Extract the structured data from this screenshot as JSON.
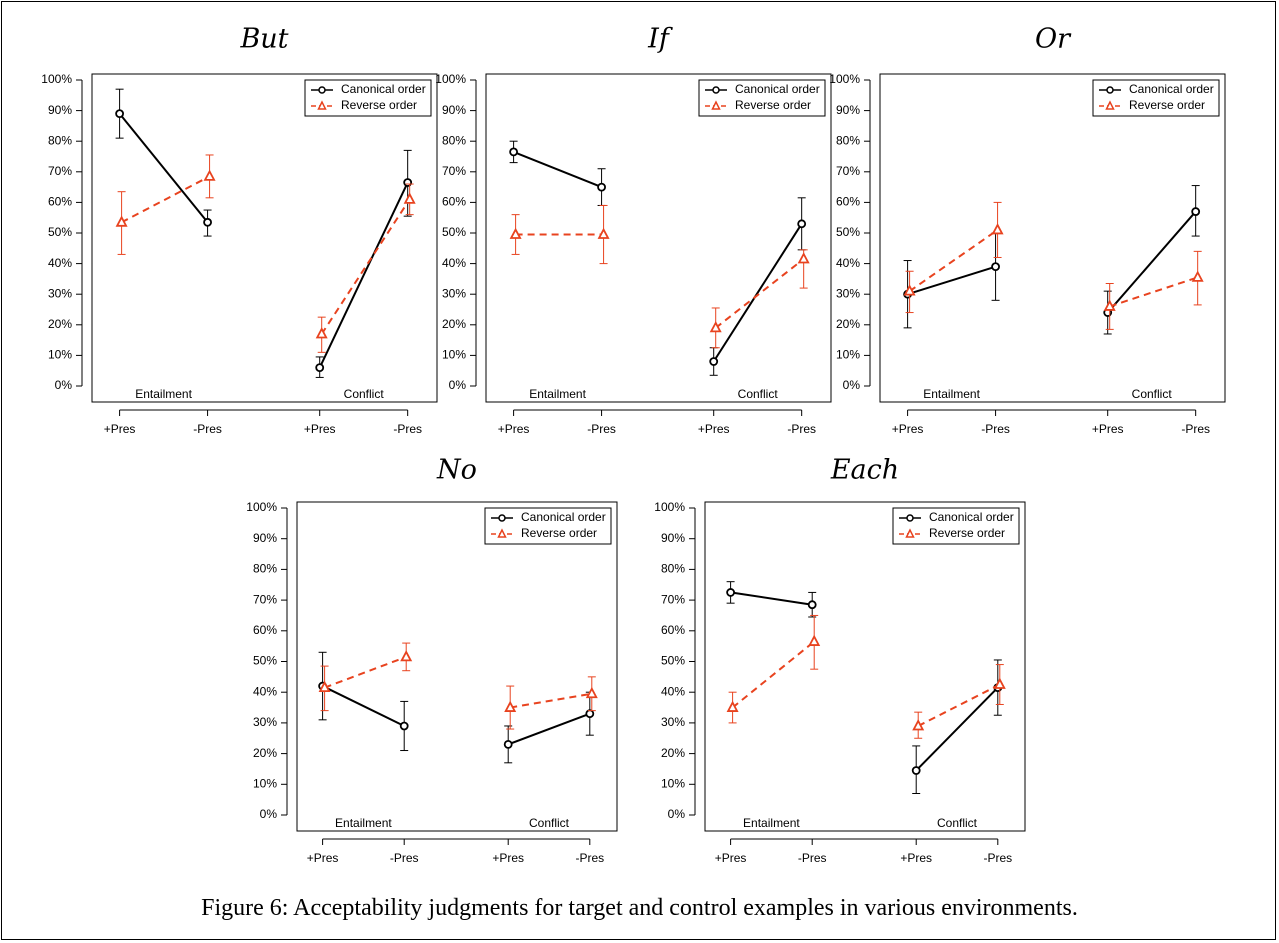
{
  "figure": {
    "caption": "Figure 6: Acceptability judgments for target and control examples in various environments."
  },
  "colors": {
    "canonical": "#000000",
    "reverse": "#e8431f"
  },
  "chart_data": [
    {
      "type": "line",
      "title": "But",
      "categories": [
        "+Pres",
        "-Pres",
        "+Pres",
        "-Pres"
      ],
      "groups": [
        "Entailment",
        "Conflict"
      ],
      "ylim": [
        0,
        100
      ],
      "yticks": [
        "0%",
        "10%",
        "20%",
        "30%",
        "40%",
        "50%",
        "60%",
        "70%",
        "80%",
        "90%",
        "100%"
      ],
      "legend_position": "top-right",
      "series": [
        {
          "name": "Canonical order",
          "values": [
            89,
            53.5,
            6,
            66.5
          ],
          "err_low": [
            81,
            49,
            2.8,
            55.5
          ],
          "err_high": [
            97,
            57.5,
            9.5,
            77
          ]
        },
        {
          "name": "Reverse order",
          "values": [
            53.5,
            68.5,
            17,
            61
          ],
          "err_low": [
            43,
            61.5,
            11,
            56
          ],
          "err_high": [
            63.5,
            75.5,
            22.5,
            66
          ]
        }
      ]
    },
    {
      "type": "line",
      "title": "If",
      "categories": [
        "+Pres",
        "-Pres",
        "+Pres",
        "-Pres"
      ],
      "groups": [
        "Entailment",
        "Conflict"
      ],
      "ylim": [
        0,
        100
      ],
      "yticks": [
        "0%",
        "10%",
        "20%",
        "30%",
        "40%",
        "50%",
        "60%",
        "70%",
        "80%",
        "90%",
        "100%"
      ],
      "legend_position": "top-right",
      "series": [
        {
          "name": "Canonical order",
          "values": [
            76.5,
            65,
            8,
            53
          ],
          "err_low": [
            73,
            59,
            3.5,
            44.5
          ],
          "err_high": [
            80,
            71,
            12.5,
            61.5
          ]
        },
        {
          "name": "Reverse order",
          "values": [
            49.5,
            49.5,
            19,
            41.5
          ],
          "err_low": [
            43,
            40,
            12.5,
            32
          ],
          "err_high": [
            56,
            59,
            25.5,
            44.5
          ]
        }
      ]
    },
    {
      "type": "line",
      "title": "Or",
      "categories": [
        "+Pres",
        "-Pres",
        "+Pres",
        "-Pres"
      ],
      "groups": [
        "Entailment",
        "Conflict"
      ],
      "ylim": [
        0,
        100
      ],
      "yticks": [
        "0%",
        "10%",
        "20%",
        "30%",
        "40%",
        "50%",
        "60%",
        "70%",
        "80%",
        "90%",
        "100%"
      ],
      "legend_position": "top-right",
      "series": [
        {
          "name": "Canonical order",
          "values": [
            30,
            39,
            24,
            57
          ],
          "err_low": [
            19,
            28,
            17,
            49
          ],
          "err_high": [
            41,
            50,
            31,
            65.5
          ]
        },
        {
          "name": "Reverse order",
          "values": [
            31,
            51,
            26,
            35.5
          ],
          "err_low": [
            24,
            42,
            18.5,
            26.5
          ],
          "err_high": [
            37.5,
            60,
            33.5,
            44
          ]
        }
      ]
    },
    {
      "type": "line",
      "title": "No",
      "categories": [
        "+Pres",
        "-Pres",
        "+Pres",
        "-Pres"
      ],
      "groups": [
        "Entailment",
        "Conflict"
      ],
      "ylim": [
        0,
        100
      ],
      "yticks": [
        "0%",
        "10%",
        "20%",
        "30%",
        "40%",
        "50%",
        "60%",
        "70%",
        "80%",
        "90%",
        "100%"
      ],
      "legend_position": "top-right",
      "series": [
        {
          "name": "Canonical order",
          "values": [
            42,
            29,
            23,
            33
          ],
          "err_low": [
            31,
            21,
            17,
            26
          ],
          "err_high": [
            53,
            37,
            29,
            40
          ]
        },
        {
          "name": "Reverse order",
          "values": [
            41.5,
            51.5,
            35,
            39.5
          ],
          "err_low": [
            34,
            47,
            28,
            34
          ],
          "err_high": [
            48.5,
            56,
            42,
            45
          ]
        }
      ]
    },
    {
      "type": "line",
      "title": "Each",
      "categories": [
        "+Pres",
        "-Pres",
        "+Pres",
        "-Pres"
      ],
      "groups": [
        "Entailment",
        "Conflict"
      ],
      "ylim": [
        0,
        100
      ],
      "yticks": [
        "0%",
        "10%",
        "20%",
        "30%",
        "40%",
        "50%",
        "60%",
        "70%",
        "80%",
        "90%",
        "100%"
      ],
      "legend_position": "top-right",
      "series": [
        {
          "name": "Canonical order",
          "values": [
            72.5,
            68.5,
            14.5,
            41.5
          ],
          "err_low": [
            69,
            64.5,
            7,
            32.5
          ],
          "err_high": [
            76,
            72.5,
            22.5,
            50.5
          ]
        },
        {
          "name": "Reverse order",
          "values": [
            35,
            56.5,
            29,
            42.5
          ],
          "err_low": [
            30,
            47.5,
            25,
            36
          ],
          "err_high": [
            40,
            65,
            33.5,
            49
          ]
        }
      ]
    }
  ]
}
